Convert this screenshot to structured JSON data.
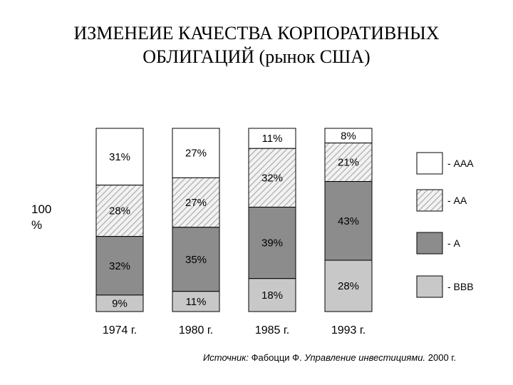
{
  "chart_data": {
    "type": "bar",
    "stacked": true,
    "title_line1": "ИЗМЕНЕИЕ КАЧЕСТВА КОРПОРАТИВНЫХ",
    "title_line2": "ОБЛИГАЦИЙ (рынок США)",
    "ylabel_line1": "100",
    "ylabel_line2": "%",
    "categories": [
      "1974 г.",
      "1980 г.",
      "1985 г.",
      "1993 г."
    ],
    "ylim": [
      0,
      100
    ],
    "legend_position": "right",
    "series": [
      {
        "name": "- ААА",
        "values": [
          31,
          27,
          11,
          8
        ],
        "color": "#ffffff",
        "pattern": "none",
        "labels": [
          "31%",
          "27%",
          "11%",
          "8%"
        ]
      },
      {
        "name": "- АА",
        "values": [
          28,
          27,
          32,
          21
        ],
        "color": "#d9d9d9",
        "pattern": "hatch",
        "labels": [
          "28%",
          "27%",
          "32%",
          "21%"
        ]
      },
      {
        "name": "- А",
        "values": [
          32,
          35,
          39,
          43
        ],
        "color": "#8c8c8c",
        "pattern": "none",
        "labels": [
          "32%",
          "35%",
          "39%",
          "43%"
        ]
      },
      {
        "name": "- ВВВ",
        "values": [
          9,
          11,
          18,
          28
        ],
        "color": "#c8c8c8",
        "pattern": "none",
        "labels": [
          "9%",
          "11%",
          "18%",
          "28%"
        ]
      }
    ]
  },
  "source": {
    "prefix": "Источник:",
    "authors": "Фабоцци Ф.",
    "work": "Управление инвестициями.",
    "year": "2000 г."
  }
}
